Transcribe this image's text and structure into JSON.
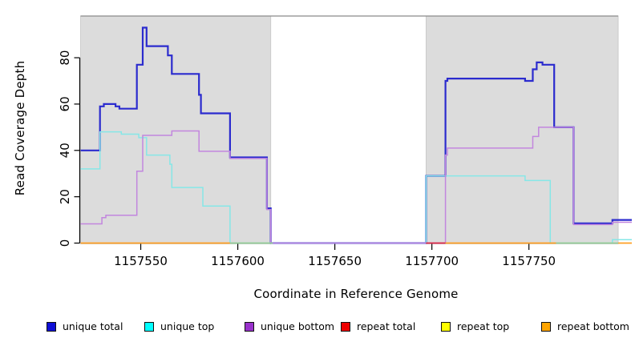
{
  "chart_data": {
    "type": "line",
    "subtype": "step-after",
    "title": "",
    "xlabel": "Coordinate in Reference Genome",
    "ylabel": "Read Coverage Depth",
    "xlim": [
      1157519,
      1157803
    ],
    "ylim": [
      0,
      98
    ],
    "x_ticks": [
      1157550,
      1157600,
      1157650,
      1157700,
      1157750
    ],
    "y_ticks": [
      0,
      20,
      40,
      60,
      80
    ],
    "grid": false,
    "legend_position": "bottom",
    "shaded_regions": [
      {
        "from": 1157519,
        "to": 1157617,
        "color": "#DCDCDC"
      },
      {
        "from": 1157697,
        "to": 1157796,
        "color": "#DCDCDC"
      }
    ],
    "series": [
      {
        "name": "unique total",
        "slug": "unique-total",
        "line_color": "#2B2BCE",
        "legend_color": "#0F0FD6",
        "line_width": 2.2,
        "points": [
          [
            1157519,
            40
          ],
          [
            1157529,
            59
          ],
          [
            1157531,
            60
          ],
          [
            1157537,
            59
          ],
          [
            1157539,
            58
          ],
          [
            1157548,
            77
          ],
          [
            1157551,
            93
          ],
          [
            1157553,
            85
          ],
          [
            1157564,
            81
          ],
          [
            1157566,
            73
          ],
          [
            1157580,
            64
          ],
          [
            1157581,
            56
          ],
          [
            1157596,
            37
          ],
          [
            1157615,
            15
          ],
          [
            1157617,
            0
          ],
          [
            1157697,
            29
          ],
          [
            1157707,
            70
          ],
          [
            1157708,
            71
          ],
          [
            1157748,
            70
          ],
          [
            1157752,
            75
          ],
          [
            1157754,
            78
          ],
          [
            1157757,
            77
          ],
          [
            1157763,
            50
          ],
          [
            1157773,
            8.5
          ],
          [
            1157793,
            10
          ],
          [
            1157803,
            10
          ]
        ]
      },
      {
        "name": "unique top",
        "slug": "unique-top",
        "line_color": "#86E7E7",
        "legend_color": "#00FFFF",
        "line_width": 1.5,
        "points": [
          [
            1157519,
            32
          ],
          [
            1157529,
            48
          ],
          [
            1157540,
            47
          ],
          [
            1157549,
            45.5
          ],
          [
            1157553,
            38
          ],
          [
            1157565,
            34
          ],
          [
            1157566,
            24
          ],
          [
            1157582,
            16
          ],
          [
            1157596,
            0
          ],
          [
            1157697,
            29
          ],
          [
            1157748,
            27
          ],
          [
            1157761,
            0
          ],
          [
            1157793,
            1.5
          ],
          [
            1157803,
            1.5
          ]
        ]
      },
      {
        "name": "unique bottom",
        "slug": "unique-bottom",
        "line_color": "#C286DE",
        "legend_color": "#9932CC",
        "line_width": 1.5,
        "points": [
          [
            1157519,
            8.3
          ],
          [
            1157530,
            11
          ],
          [
            1157532,
            12
          ],
          [
            1157548,
            31
          ],
          [
            1157551,
            46.5
          ],
          [
            1157566,
            48.4
          ],
          [
            1157580,
            39.6
          ],
          [
            1157596,
            36.5
          ],
          [
            1157615,
            14.5
          ],
          [
            1157617,
            0
          ],
          [
            1157707,
            38
          ],
          [
            1157708,
            41
          ],
          [
            1157752,
            46
          ],
          [
            1157755,
            50
          ],
          [
            1157773,
            8
          ],
          [
            1157793,
            9
          ],
          [
            1157803,
            9
          ]
        ]
      },
      {
        "name": "repeat total",
        "slug": "repeat-total",
        "line_color": "#DC2846",
        "legend_color": "#EE0000",
        "line_width": 1.8,
        "render": "zero-segments",
        "points": [
          [
            1157519,
            0
          ],
          [
            1157803,
            0
          ]
        ]
      },
      {
        "name": "repeat top",
        "slug": "repeat-top",
        "line_color": "#96CC96",
        "legend_color": "#FFFF00",
        "line_width": 1.8,
        "render": "zero-segments",
        "points": [
          [
            1157519,
            0
          ],
          [
            1157803,
            0
          ]
        ]
      },
      {
        "name": "repeat bottom",
        "slug": "repeat-bottom",
        "line_color": "#FF9F22",
        "legend_color": "#FFA500",
        "line_width": 1.8,
        "render": "zero-segments",
        "points": [
          [
            1157519,
            0
          ],
          [
            1157803,
            0
          ]
        ]
      }
    ],
    "zero_line_segments": [
      {
        "series": "repeat bottom",
        "from": 1157519,
        "to": 1157596
      },
      {
        "series": "repeat top",
        "from": 1157596,
        "to": 1157618
      },
      {
        "series": "repeat total",
        "from": 1157697,
        "to": 1157707
      },
      {
        "series": "repeat bottom",
        "from": 1157707,
        "to": 1157764
      },
      {
        "series": "repeat top",
        "from": 1157764,
        "to": 1157796
      },
      {
        "series": "repeat bottom",
        "from": 1157796,
        "to": 1157803
      }
    ]
  },
  "legend": {
    "items": [
      {
        "label": "unique total",
        "swatch": "#0F0FD6"
      },
      {
        "label": "unique top",
        "swatch": "#00FFFF"
      },
      {
        "label": "unique bottom",
        "swatch": "#9932CC"
      },
      {
        "label": "repeat total",
        "swatch": "#EE0000"
      },
      {
        "label": "repeat top",
        "swatch": "#FFFF00"
      },
      {
        "label": "repeat bottom",
        "swatch": "#FFA500"
      }
    ]
  },
  "colors": {
    "shaded_region": "#DCDCDC",
    "region_border": "#C6C6C6",
    "top_border_line": "#8A8A8A",
    "axis": "#000000"
  }
}
